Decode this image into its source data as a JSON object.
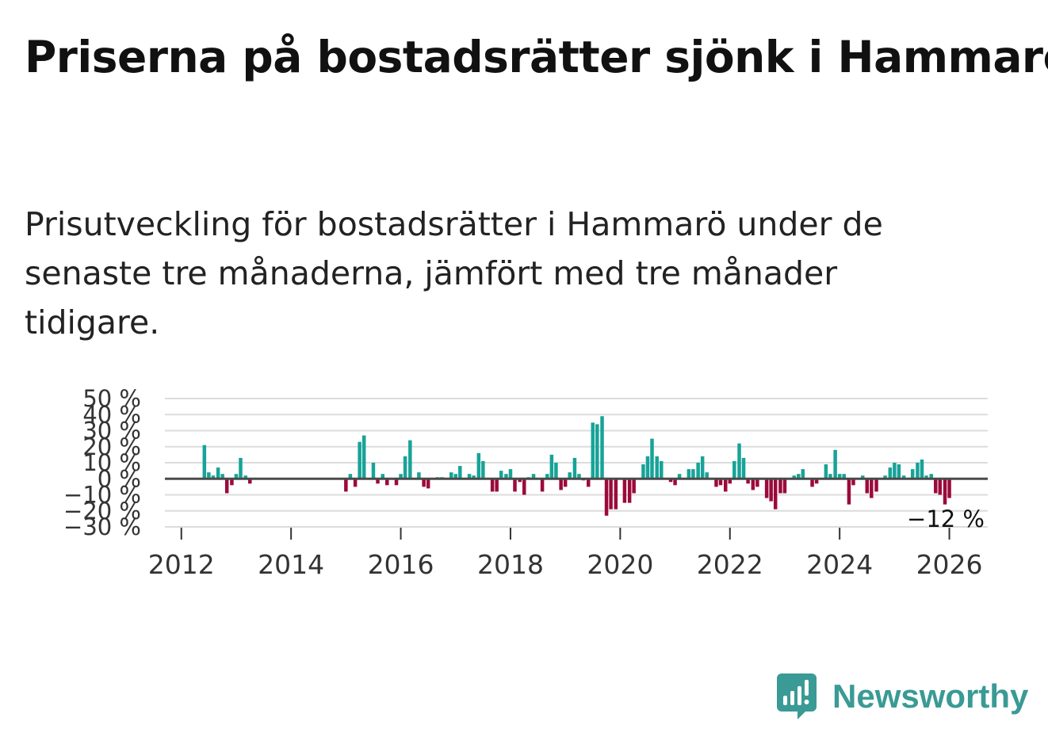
{
  "title": "Priserna på bostadsrätter sjönk i Hammarö",
  "subtitle": "Prisutveckling för bostadsrätter i Hammarö under de senaste tre månaderna, jämfört med tre månader tidigare.",
  "brand": {
    "name": "Newsworthy",
    "icon": "newsworthy-bar-chart-icon",
    "color": "#3a9a95"
  },
  "chart_data": {
    "type": "bar",
    "title": "",
    "xlabel": "",
    "ylabel": "",
    "x_unit": "year (decimal, monthly bars)",
    "ylim": [
      -30,
      50
    ],
    "xlim": [
      2011.7,
      2026.7
    ],
    "y_ticks": [
      50,
      40,
      30,
      20,
      10,
      0,
      -10,
      -20,
      -30
    ],
    "y_tick_labels": [
      "50 %",
      "40 %",
      "30 %",
      "20 %",
      "10 %",
      "0 %",
      "−10 %",
      "−20 %",
      "−30 %"
    ],
    "x_ticks": [
      2012,
      2014,
      2016,
      2018,
      2020,
      2022,
      2024,
      2026
    ],
    "x_tick_labels": [
      "2012",
      "2014",
      "2016",
      "2018",
      "2020",
      "2022",
      "2024",
      "2026"
    ],
    "grid": true,
    "positive_color": "#17a398",
    "negative_color": "#9b0a3c",
    "end_label": "−12 %",
    "end_value": -12,
    "series": [
      {
        "name": "Prisutveckling",
        "points": [
          [
            2012.42,
            21
          ],
          [
            2012.5,
            4
          ],
          [
            2012.58,
            2
          ],
          [
            2012.67,
            7
          ],
          [
            2012.75,
            3
          ],
          [
            2012.83,
            -9
          ],
          [
            2012.92,
            -4
          ],
          [
            2013.0,
            3
          ],
          [
            2013.08,
            13
          ],
          [
            2013.17,
            2
          ],
          [
            2013.25,
            -3
          ],
          [
            2015.0,
            -8
          ],
          [
            2015.08,
            3
          ],
          [
            2015.17,
            -5
          ],
          [
            2015.25,
            23
          ],
          [
            2015.33,
            27
          ],
          [
            2015.5,
            10
          ],
          [
            2015.58,
            -3
          ],
          [
            2015.67,
            3
          ],
          [
            2015.75,
            -4
          ],
          [
            2015.92,
            -4
          ],
          [
            2016.0,
            3
          ],
          [
            2016.08,
            14
          ],
          [
            2016.17,
            24
          ],
          [
            2016.33,
            4
          ],
          [
            2016.42,
            -5
          ],
          [
            2016.5,
            -6
          ],
          [
            2016.67,
            1
          ],
          [
            2016.75,
            1
          ],
          [
            2016.92,
            4
          ],
          [
            2017.0,
            3
          ],
          [
            2017.08,
            8
          ],
          [
            2017.25,
            3
          ],
          [
            2017.33,
            2
          ],
          [
            2017.42,
            16
          ],
          [
            2017.5,
            11
          ],
          [
            2017.67,
            -8
          ],
          [
            2017.75,
            -8
          ],
          [
            2017.83,
            5
          ],
          [
            2017.92,
            3
          ],
          [
            2018.0,
            6
          ],
          [
            2018.08,
            -8
          ],
          [
            2018.17,
            -2
          ],
          [
            2018.25,
            -10
          ],
          [
            2018.33,
            1
          ],
          [
            2018.42,
            3
          ],
          [
            2018.58,
            -8
          ],
          [
            2018.67,
            3
          ],
          [
            2018.75,
            15
          ],
          [
            2018.83,
            10
          ],
          [
            2018.92,
            -7
          ],
          [
            2019.0,
            -5
          ],
          [
            2019.08,
            4
          ],
          [
            2019.17,
            13
          ],
          [
            2019.25,
            3
          ],
          [
            2019.33,
            -1
          ],
          [
            2019.42,
            -5
          ],
          [
            2019.5,
            35
          ],
          [
            2019.58,
            34
          ],
          [
            2019.67,
            39
          ],
          [
            2019.75,
            -23
          ],
          [
            2019.83,
            -19
          ],
          [
            2019.92,
            -19
          ],
          [
            2020.08,
            -15
          ],
          [
            2020.17,
            -15
          ],
          [
            2020.25,
            -9
          ],
          [
            2020.42,
            9
          ],
          [
            2020.5,
            14
          ],
          [
            2020.58,
            25
          ],
          [
            2020.67,
            14
          ],
          [
            2020.75,
            11
          ],
          [
            2020.92,
            -2
          ],
          [
            2021.0,
            -4
          ],
          [
            2021.08,
            3
          ],
          [
            2021.25,
            6
          ],
          [
            2021.33,
            6
          ],
          [
            2021.42,
            10
          ],
          [
            2021.5,
            14
          ],
          [
            2021.58,
            4
          ],
          [
            2021.75,
            -5
          ],
          [
            2021.83,
            -4
          ],
          [
            2021.92,
            -8
          ],
          [
            2022.0,
            -3
          ],
          [
            2022.08,
            11
          ],
          [
            2022.17,
            22
          ],
          [
            2022.25,
            13
          ],
          [
            2022.33,
            -3
          ],
          [
            2022.42,
            -7
          ],
          [
            2022.5,
            -5
          ],
          [
            2022.67,
            -12
          ],
          [
            2022.75,
            -14
          ],
          [
            2022.83,
            -19
          ],
          [
            2022.92,
            -9
          ],
          [
            2023.0,
            -9
          ],
          [
            2023.17,
            2
          ],
          [
            2023.25,
            3
          ],
          [
            2023.33,
            6
          ],
          [
            2023.5,
            -5
          ],
          [
            2023.58,
            -3
          ],
          [
            2023.75,
            9
          ],
          [
            2023.83,
            3
          ],
          [
            2023.92,
            18
          ],
          [
            2024.0,
            3
          ],
          [
            2024.08,
            3
          ],
          [
            2024.17,
            -16
          ],
          [
            2024.25,
            -4
          ],
          [
            2024.42,
            2
          ],
          [
            2024.5,
            -9
          ],
          [
            2024.58,
            -12
          ],
          [
            2024.67,
            -8
          ],
          [
            2024.83,
            2
          ],
          [
            2024.92,
            7
          ],
          [
            2025.0,
            10
          ],
          [
            2025.08,
            9
          ],
          [
            2025.17,
            2
          ],
          [
            2025.33,
            6
          ],
          [
            2025.42,
            10
          ],
          [
            2025.5,
            12
          ],
          [
            2025.58,
            2
          ],
          [
            2025.67,
            3
          ],
          [
            2025.75,
            -9
          ],
          [
            2025.83,
            -10
          ],
          [
            2025.92,
            -16
          ],
          [
            2026.0,
            -12
          ]
        ]
      }
    ]
  }
}
